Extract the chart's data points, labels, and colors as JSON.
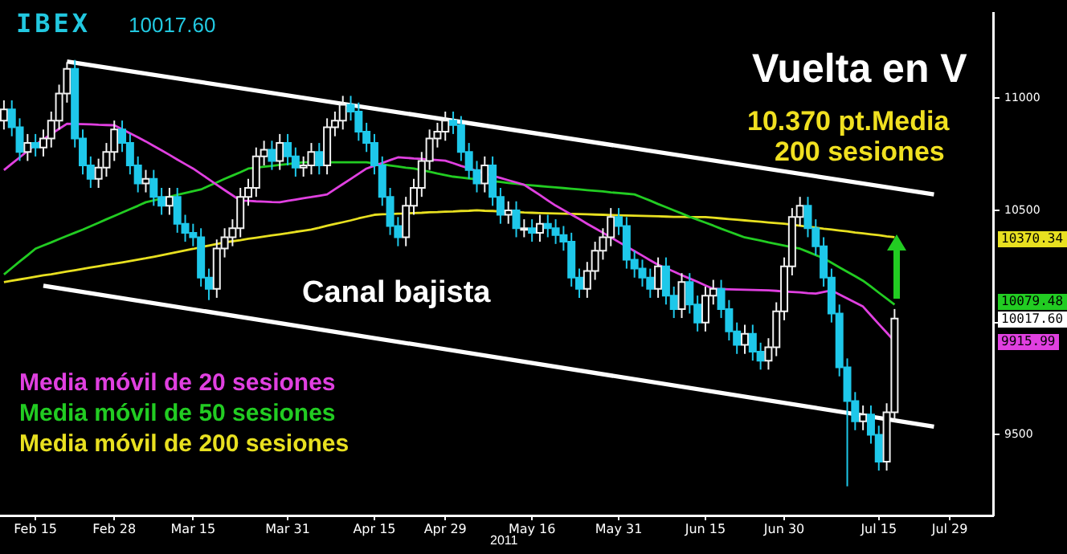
{
  "chart_data": {
    "type": "candlestick",
    "title": "IBEX",
    "subtitle": "10017.60",
    "annotations": [
      "Vuelta en V",
      "10.370 pt.Media",
      "200 sesiones",
      "Canal bajista",
      "2011",
      "10370.34",
      "10079.48",
      "10017.60",
      "9915.99"
    ],
    "categories": [
      null,
      null,
      null,
      null,
      "Feb 15",
      null,
      null,
      null,
      null,
      null,
      null,
      null,
      null,
      null,
      "Feb 28",
      null,
      null,
      null,
      null,
      null,
      null,
      null,
      null,
      null,
      "Mar 15",
      null,
      null,
      null,
      null,
      null,
      null,
      null,
      null,
      null,
      null,
      null,
      "Mar 31",
      null,
      null,
      null,
      null,
      null,
      null,
      null,
      null,
      null,
      null,
      "Apr 15",
      null,
      null,
      null,
      null,
      null,
      null,
      null,
      null,
      "Apr 29",
      null,
      null,
      null,
      null,
      null,
      null,
      null,
      null,
      null,
      null,
      "May 16",
      null,
      null,
      null,
      null,
      null,
      null,
      null,
      null,
      null,
      null,
      "May 31",
      null,
      null,
      null,
      null,
      null,
      null,
      null,
      null,
      null,
      null,
      "Jun 15",
      null,
      null,
      null,
      null,
      null,
      null,
      null,
      null,
      null,
      "Jun 30",
      null,
      null,
      null,
      null,
      null,
      null,
      null,
      null,
      null,
      null,
      null,
      "Jul 15",
      null,
      null,
      null,
      null,
      null,
      null,
      null,
      null,
      "Jul 29",
      null,
      null,
      null,
      null,
      null
    ],
    "ohlc": [
      [
        10900,
        10990,
        10860,
        10950
      ],
      [
        10950,
        10990,
        10830,
        10870
      ],
      [
        10870,
        10910,
        10720,
        10760
      ],
      [
        10760,
        10840,
        10720,
        10800
      ],
      [
        10800,
        10840,
        10740,
        10780
      ],
      [
        10780,
        10860,
        10740,
        10820
      ],
      [
        10820,
        10940,
        10780,
        10900
      ],
      [
        10900,
        11060,
        10860,
        11020
      ],
      [
        11020,
        11160,
        10980,
        11130
      ],
      [
        11130,
        11170,
        10780,
        10820
      ],
      [
        10820,
        10860,
        10660,
        10700
      ],
      [
        10700,
        10740,
        10600,
        10640
      ],
      [
        10640,
        10730,
        10600,
        10690
      ],
      [
        10690,
        10800,
        10650,
        10760
      ],
      [
        10760,
        10900,
        10720,
        10860
      ],
      [
        10860,
        10900,
        10760,
        10800
      ],
      [
        10800,
        10840,
        10660,
        10700
      ],
      [
        10700,
        10740,
        10580,
        10620
      ],
      [
        10620,
        10680,
        10580,
        10640
      ],
      [
        10640,
        10680,
        10520,
        10560
      ],
      [
        10560,
        10600,
        10480,
        10520
      ],
      [
        10520,
        10600,
        10480,
        10560
      ],
      [
        10560,
        10600,
        10400,
        10440
      ],
      [
        10440,
        10480,
        10360,
        10400
      ],
      [
        10400,
        10440,
        10340,
        10380
      ],
      [
        10380,
        10420,
        10160,
        10200
      ],
      [
        10200,
        10240,
        10100,
        10150
      ],
      [
        10150,
        10370,
        10110,
        10330
      ],
      [
        10330,
        10420,
        10290,
        10380
      ],
      [
        10380,
        10460,
        10340,
        10420
      ],
      [
        10420,
        10600,
        10380,
        10560
      ],
      [
        10560,
        10640,
        10520,
        10600
      ],
      [
        10600,
        10780,
        10560,
        10740
      ],
      [
        10740,
        10810,
        10700,
        10770
      ],
      [
        10770,
        10810,
        10680,
        10720
      ],
      [
        10720,
        10840,
        10680,
        10800
      ],
      [
        10800,
        10840,
        10700,
        10740
      ],
      [
        10740,
        10780,
        10650,
        10690
      ],
      [
        10690,
        10740,
        10650,
        10700
      ],
      [
        10700,
        10800,
        10660,
        10760
      ],
      [
        10760,
        10800,
        10660,
        10700
      ],
      [
        10700,
        10910,
        10660,
        10870
      ],
      [
        10870,
        10940,
        10830,
        10900
      ],
      [
        10900,
        11010,
        10860,
        10970
      ],
      [
        10970,
        11010,
        10900,
        10940
      ],
      [
        10940,
        10980,
        10810,
        10850
      ],
      [
        10850,
        10890,
        10760,
        10800
      ],
      [
        10800,
        10840,
        10660,
        10700
      ],
      [
        10700,
        10740,
        10520,
        10560
      ],
      [
        10560,
        10600,
        10390,
        10430
      ],
      [
        10430,
        10470,
        10340,
        10380
      ],
      [
        10380,
        10560,
        10340,
        10520
      ],
      [
        10520,
        10640,
        10480,
        10600
      ],
      [
        10600,
        10760,
        10560,
        10720
      ],
      [
        10720,
        10860,
        10680,
        10820
      ],
      [
        10820,
        10890,
        10780,
        10850
      ],
      [
        10850,
        10940,
        10810,
        10900
      ],
      [
        10900,
        10940,
        10840,
        10880
      ],
      [
        10880,
        10920,
        10720,
        10760
      ],
      [
        10760,
        10800,
        10640,
        10680
      ],
      [
        10680,
        10720,
        10580,
        10620
      ],
      [
        10620,
        10740,
        10580,
        10700
      ],
      [
        10700,
        10740,
        10520,
        10560
      ],
      [
        10560,
        10600,
        10440,
        10480
      ],
      [
        10480,
        10540,
        10440,
        10500
      ],
      [
        10500,
        10540,
        10380,
        10420
      ],
      [
        10420,
        10460,
        10380,
        10420
      ],
      [
        10420,
        10460,
        10360,
        10400
      ],
      [
        10400,
        10480,
        10360,
        10440
      ],
      [
        10440,
        10480,
        10380,
        10420
      ],
      [
        10420,
        10460,
        10350,
        10390
      ],
      [
        10390,
        10430,
        10320,
        10360
      ],
      [
        10360,
        10400,
        10160,
        10200
      ],
      [
        10200,
        10240,
        10110,
        10150
      ],
      [
        10150,
        10270,
        10110,
        10230
      ],
      [
        10230,
        10360,
        10190,
        10320
      ],
      [
        10320,
        10420,
        10280,
        10380
      ],
      [
        10380,
        10510,
        10340,
        10470
      ],
      [
        10470,
        10510,
        10390,
        10430
      ],
      [
        10430,
        10470,
        10240,
        10280
      ],
      [
        10280,
        10320,
        10200,
        10240
      ],
      [
        10240,
        10280,
        10160,
        10200
      ],
      [
        10200,
        10240,
        10110,
        10150
      ],
      [
        10150,
        10290,
        10110,
        10250
      ],
      [
        10250,
        10290,
        10080,
        10120
      ],
      [
        10120,
        10160,
        10020,
        10060
      ],
      [
        10060,
        10220,
        10020,
        10180
      ],
      [
        10180,
        10220,
        10040,
        10080
      ],
      [
        10080,
        10120,
        9960,
        10000
      ],
      [
        10000,
        10160,
        9960,
        10120
      ],
      [
        10120,
        10190,
        10080,
        10150
      ],
      [
        10150,
        10190,
        10020,
        10060
      ],
      [
        10060,
        10100,
        9920,
        9960
      ],
      [
        9960,
        10000,
        9860,
        9900
      ],
      [
        9900,
        9990,
        9860,
        9950
      ],
      [
        9950,
        9990,
        9830,
        9870
      ],
      [
        9870,
        9910,
        9790,
        9830
      ],
      [
        9830,
        9930,
        9790,
        9890
      ],
      [
        9890,
        10090,
        9850,
        10050
      ],
      [
        10050,
        10290,
        10010,
        10250
      ],
      [
        10250,
        10510,
        10210,
        10470
      ],
      [
        10470,
        10560,
        10430,
        10520
      ],
      [
        10520,
        10560,
        10380,
        10420
      ],
      [
        10420,
        10460,
        10300,
        10340
      ],
      [
        10340,
        10380,
        10160,
        10200
      ],
      [
        10200,
        10240,
        10000,
        10040
      ],
      [
        10040,
        10080,
        9760,
        9800
      ],
      [
        9800,
        9840,
        9270,
        9650
      ],
      [
        9650,
        9690,
        9520,
        9560
      ],
      [
        9560,
        9630,
        9520,
        9590
      ],
      [
        9590,
        9630,
        9460,
        9500
      ],
      [
        9500,
        9540,
        9340,
        9380
      ],
      [
        9380,
        9640,
        9340,
        9600
      ],
      [
        9600,
        10060,
        9560,
        10017.6
      ],
      null,
      null,
      null,
      null,
      null,
      null,
      null,
      null,
      null,
      null,
      null,
      null
    ],
    "series": [
      {
        "name": "Media móvil de 20 sesiones",
        "type": "line",
        "color": "#e040e0",
        "values": [
          10679,
          10708,
          10736,
          10765,
          10793,
          10816,
          10840,
          10863,
          10886,
          10885,
          10884,
          10883,
          10881,
          10880,
          10879,
          10861,
          10843,
          10825,
          10807,
          10787,
          10767,
          10747,
          10726,
          10706,
          10686,
          10662,
          10638,
          10614,
          10590,
          10567,
          10543,
          10542,
          10540,
          10539,
          10537,
          10536,
          10542,
          10548,
          10554,
          10559,
          10565,
          10571,
          10594,
          10617,
          10640,
          10663,
          10686,
          10699,
          10711,
          10724,
          10736,
          10734,
          10731,
          10729,
          10726,
          10724,
          10721,
          10710,
          10698,
          10687,
          10675,
          10664,
          10654,
          10644,
          10634,
          10624,
          10614,
          10591,
          10568,
          10544,
          10521,
          10501,
          10481,
          10461,
          10440,
          10420,
          10400,
          10380,
          10359,
          10339,
          10318,
          10298,
          10277,
          10257,
          10242,
          10227,
          10211,
          10196,
          10181,
          10165,
          10150,
          10149,
          10148,
          10147,
          10146,
          10145,
          10144,
          10143,
          10141,
          10138,
          10136,
          10134,
          10131,
          10129,
          10136,
          10143,
          10125,
          10107,
          10089,
          10071,
          10032,
          9993,
          9955,
          9916,
          null,
          null,
          null,
          null,
          null,
          null,
          null,
          null,
          null,
          null,
          null,
          null
        ]
      },
      {
        "name": "Media móvil de 50 sesiones",
        "type": "line",
        "color": "#22cc22",
        "values": [
          10214,
          10243,
          10272,
          10300,
          10329,
          10343,
          10357,
          10372,
          10386,
          10400,
          10414,
          10429,
          10444,
          10460,
          10475,
          10490,
          10505,
          10520,
          10536,
          10544,
          10552,
          10560,
          10569,
          10577,
          10585,
          10593,
          10609,
          10624,
          10640,
          10655,
          10670,
          10686,
          10690,
          10694,
          10698,
          10702,
          10706,
          10710,
          10714,
          10714,
          10714,
          10714,
          10714,
          10714,
          10714,
          10714,
          10714,
          10709,
          10705,
          10700,
          10695,
          10690,
          10686,
          10679,
          10672,
          10664,
          10657,
          10650,
          10646,
          10642,
          10638,
          10634,
          10630,
          10626,
          10622,
          10618,
          10614,
          10611,
          10608,
          10605,
          10602,
          10599,
          10596,
          10593,
          10590,
          10587,
          10584,
          10580,
          10577,
          10574,
          10571,
          10557,
          10543,
          10528,
          10514,
          10500,
          10486,
          10471,
          10458,
          10445,
          10432,
          10418,
          10405,
          10392,
          10379,
          10372,
          10365,
          10357,
          10350,
          10343,
          10336,
          10329,
          10315,
          10300,
          10286,
          10266,
          10246,
          10226,
          10206,
          10186,
          10160,
          10133,
          10107,
          10080,
          null,
          null,
          null,
          null,
          null,
          null,
          null,
          null,
          null,
          null,
          null,
          null
        ]
      },
      {
        "name": "Media móvil de 200 sesiones",
        "type": "line",
        "color": "#e8e020",
        "values": [
          10180,
          10186,
          10192,
          10198,
          10204,
          10210,
          10215,
          10221,
          10227,
          10233,
          10239,
          10245,
          10251,
          10257,
          10262,
          10268,
          10274,
          10280,
          10286,
          10293,
          10300,
          10307,
          10314,
          10321,
          10328,
          10336,
          10343,
          10350,
          10357,
          10362,
          10367,
          10373,
          10378,
          10383,
          10388,
          10393,
          10398,
          10404,
          10409,
          10414,
          10422,
          10431,
          10439,
          10447,
          10455,
          10464,
          10472,
          10480,
          10482,
          10483,
          10485,
          10486,
          10488,
          10489,
          10491,
          10492,
          10494,
          10495,
          10497,
          10498,
          10500,
          10498,
          10497,
          10495,
          10493,
          10492,
          10490,
          10489,
          10488,
          10487,
          10486,
          10485,
          10484,
          10483,
          10482,
          10481,
          10480,
          10479,
          10478,
          10477,
          10476,
          10475,
          10474,
          10473,
          10472,
          10471,
          10471,
          10470,
          10470,
          10470,
          10467,
          10464,
          10461,
          10458,
          10455,
          10452,
          10449,
          10446,
          10443,
          10440,
          10436,
          10431,
          10427,
          10423,
          10418,
          10414,
          10410,
          10406,
          10401,
          10397,
          10393,
          10389,
          10384,
          10380,
          null,
          null,
          null,
          null,
          null,
          null,
          null,
          null,
          null,
          null,
          null,
          null
        ]
      },
      {
        "type": "line",
        "color": "#ffffff",
        "values": [
          null,
          null,
          null,
          null,
          null,
          null,
          null,
          null,
          11163,
          null,
          null,
          null,
          null,
          null,
          null,
          null,
          null,
          null,
          null,
          null,
          null,
          null,
          null,
          null,
          null,
          null,
          null,
          null,
          null,
          null,
          null,
          null,
          null,
          null,
          null,
          null,
          null,
          null,
          null,
          null,
          null,
          null,
          null,
          null,
          null,
          null,
          null,
          null,
          null,
          null,
          null,
          null,
          null,
          null,
          null,
          null,
          null,
          null,
          null,
          null,
          null,
          null,
          null,
          null,
          null,
          null,
          null,
          null,
          null,
          null,
          null,
          null,
          null,
          null,
          null,
          null,
          null,
          null,
          null,
          null,
          null,
          null,
          null,
          null,
          null,
          null,
          null,
          null,
          null,
          null,
          null,
          null,
          null,
          null,
          null,
          null,
          null,
          null,
          null,
          null,
          null,
          null,
          null,
          null,
          null,
          null,
          null,
          null,
          null,
          null,
          null,
          null,
          null,
          null,
          null,
          null,
          null,
          null,
          10571,
          null,
          null,
          null,
          null,
          null,
          null,
          null
        ]
      },
      {
        "type": "line",
        "color": "#ffffff",
        "values": [
          null,
          null,
          null,
          null,
          null,
          10164,
          null,
          null,
          null,
          null,
          null,
          null,
          null,
          null,
          null,
          null,
          null,
          null,
          null,
          null,
          null,
          null,
          null,
          null,
          null,
          null,
          null,
          null,
          null,
          null,
          null,
          null,
          null,
          null,
          null,
          null,
          null,
          null,
          null,
          null,
          null,
          null,
          null,
          null,
          null,
          null,
          null,
          null,
          null,
          null,
          null,
          null,
          null,
          null,
          null,
          null,
          null,
          null,
          null,
          null,
          null,
          null,
          null,
          null,
          null,
          null,
          null,
          null,
          null,
          null,
          null,
          null,
          null,
          null,
          null,
          null,
          null,
          null,
          null,
          null,
          null,
          null,
          null,
          null,
          null,
          null,
          null,
          null,
          null,
          null,
          null,
          null,
          null,
          null,
          null,
          null,
          null,
          null,
          null,
          null,
          null,
          null,
          null,
          null,
          null,
          null,
          null,
          null,
          null,
          null,
          null,
          null,
          null,
          null,
          null,
          null,
          null,
          null,
          9536,
          null,
          null,
          null,
          null,
          null,
          null,
          null
        ]
      }
    ],
    "ylim": [
      9140,
      11380
    ],
    "yticks": [
      9500,
      {
        "value": 10000,
        "label": null
      },
      10500,
      11000
    ],
    "legend": "bottom left"
  }
}
